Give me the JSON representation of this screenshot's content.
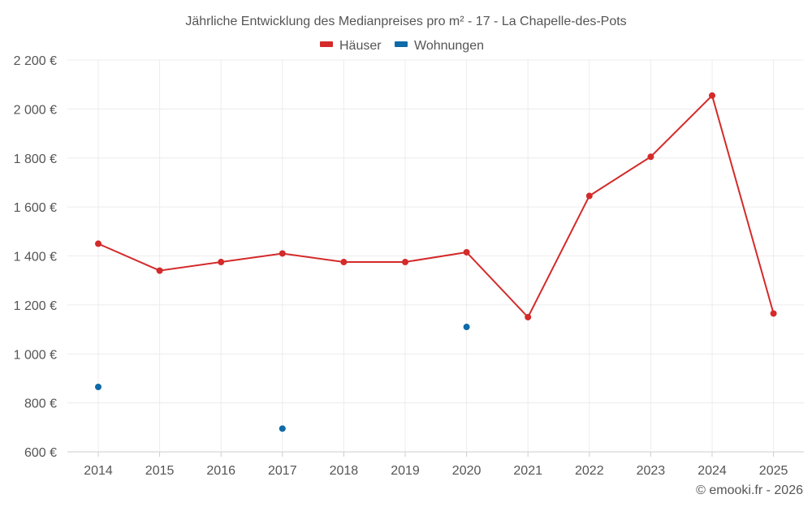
{
  "chart_data": {
    "type": "line",
    "title": "Jährliche Entwicklung des Medianpreises pro m² - 17 - La Chapelle-des-Pots",
    "categories": [
      "2014",
      "2015",
      "2016",
      "2017",
      "2018",
      "2019",
      "2020",
      "2021",
      "2022",
      "2023",
      "2024",
      "2025"
    ],
    "series": [
      {
        "name": "Häuser",
        "color": "#d42a2a",
        "values": [
          1450,
          1340,
          1375,
          1410,
          1375,
          1375,
          1415,
          1150,
          1645,
          1805,
          2055,
          1165
        ]
      },
      {
        "name": "Wohnungen",
        "color": "#0e6aa8",
        "values": [
          865,
          null,
          null,
          695,
          null,
          null,
          1110,
          null,
          null,
          null,
          null,
          null
        ]
      }
    ],
    "ylim": [
      600,
      2200
    ],
    "yticks": [
      600,
      800,
      1000,
      1200,
      1400,
      1600,
      1800,
      2000,
      2200
    ],
    "ytick_labels": [
      "600 €",
      "800 €",
      "1 000 €",
      "1 200 €",
      "1 400 €",
      "1 600 €",
      "1 800 €",
      "2 000 €",
      "2 200 €"
    ],
    "xlabel": "",
    "ylabel": "",
    "grid": true,
    "legend_position": "top-center"
  },
  "credit": "© emooki.fr - 2026"
}
